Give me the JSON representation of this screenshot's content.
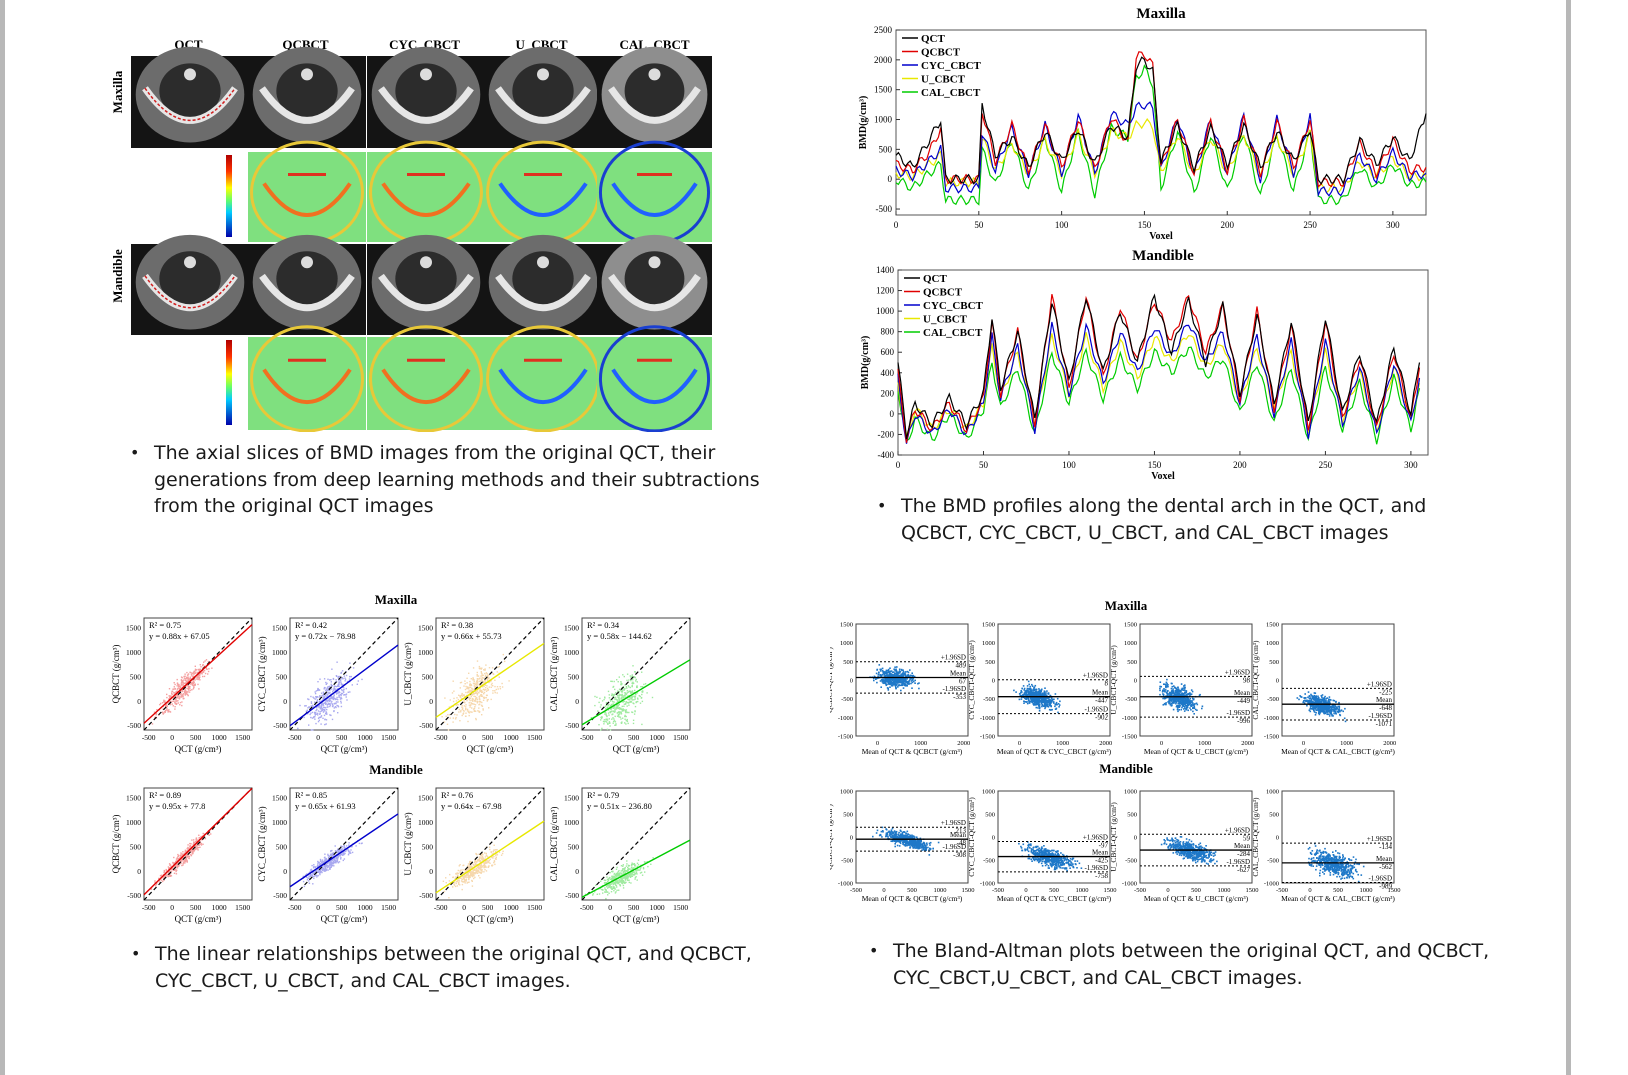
{
  "slices": {
    "column_headers": [
      "QCT",
      "QCBCT",
      "CYC_CBCT",
      "U_CBCT",
      "CAL_CBCT"
    ],
    "row_labels": [
      "Maxilla",
      "Mandible"
    ],
    "caption": [
      "The axial slices of BMD images from the original QCT, their",
      "generations from deep learning methods and their subtractions",
      "from the original QCT images"
    ]
  },
  "profiles": {
    "caption": [
      "The BMD profiles along the dental arch in the QCT, and",
      "QCBCT, CYC_CBCT, U_CBCT, and CAL_CBCT images"
    ]
  },
  "linear": {
    "caption": [
      "The linear relationships between the original QCT, and QCBCT,",
      "CYC_CBCT, U_CBCT, and CAL_CBCT images."
    ]
  },
  "bland_altman": {
    "caption": [
      "The Bland-Altman plots between the original QCT, and QCBCT,",
      "CYC_CBCT,U_CBCT, and CAL_CBCT images."
    ]
  },
  "colors": {
    "QCT": "#000000",
    "QCBCT": "#e00000",
    "CYC_CBCT": "#0000cc",
    "U_CBCT": "#e8e800",
    "CAL_CBCT": "#00cc00",
    "scatter_qcbct": "#f4a0a0",
    "scatter_cyc": "#a9a9ef",
    "scatter_u": "#f6d7ac",
    "scatter_cal": "#9fea9f",
    "ba_points": "#1e78c8"
  },
  "chart_data": [
    {
      "type": "line",
      "title": "Maxilla",
      "xlabel": "Voxel",
      "ylabel": "BMD(g/cm³)",
      "xlim": [
        0,
        320
      ],
      "ylim": [
        -600,
        2500
      ],
      "x_ticks": [
        0,
        50,
        100,
        150,
        200,
        250,
        300
      ],
      "y_ticks": [
        -500,
        0,
        500,
        1000,
        1500,
        2000,
        2500
      ],
      "legend_position": "top-left",
      "x": [
        0,
        10,
        20,
        27,
        30,
        50,
        52,
        60,
        70,
        80,
        90,
        100,
        110,
        120,
        130,
        140,
        145,
        150,
        155,
        160,
        170,
        180,
        190,
        200,
        210,
        220,
        230,
        240,
        250,
        255,
        260,
        270,
        280,
        290,
        300,
        310,
        320
      ],
      "series": [
        {
          "name": "QCT",
          "values": [
            400,
            200,
            650,
            1000,
            0,
            0,
            1250,
            400,
            700,
            200,
            800,
            300,
            850,
            250,
            900,
            700,
            1900,
            2000,
            1800,
            300,
            900,
            200,
            850,
            250,
            900,
            200,
            800,
            300,
            850,
            0,
            0,
            0,
            650,
            250,
            700,
            300,
            1100
          ]
        },
        {
          "name": "QCBCT",
          "values": [
            250,
            150,
            450,
            850,
            0,
            0,
            1150,
            300,
            900,
            150,
            900,
            200,
            1000,
            150,
            1050,
            600,
            2050,
            2100,
            1900,
            200,
            1000,
            100,
            950,
            150,
            1000,
            100,
            950,
            200,
            1000,
            -50,
            -50,
            -50,
            600,
            100,
            650,
            150,
            200
          ]
        },
        {
          "name": "CYC_CBCT",
          "values": [
            150,
            50,
            300,
            500,
            -150,
            -150,
            800,
            150,
            850,
            100,
            900,
            100,
            1050,
            100,
            1100,
            900,
            1200,
            1250,
            1200,
            150,
            1050,
            50,
            1000,
            100,
            1050,
            0,
            1000,
            100,
            1050,
            -200,
            -200,
            -200,
            400,
            0,
            450,
            50,
            100
          ]
        },
        {
          "name": "U_CBCT",
          "values": [
            100,
            50,
            250,
            400,
            -50,
            -50,
            700,
            150,
            600,
            100,
            650,
            100,
            750,
            100,
            800,
            700,
            900,
            950,
            900,
            100,
            750,
            50,
            700,
            100,
            750,
            50,
            700,
            100,
            750,
            -150,
            -150,
            -150,
            300,
            50,
            350,
            50,
            50
          ]
        },
        {
          "name": "CAL_CBCT",
          "values": [
            0,
            -150,
            100,
            250,
            -350,
            -350,
            500,
            -100,
            650,
            -200,
            700,
            -200,
            800,
            -250,
            850,
            700,
            1700,
            1850,
            1600,
            -150,
            800,
            -250,
            750,
            -200,
            800,
            -300,
            750,
            -200,
            800,
            -350,
            -350,
            -350,
            200,
            -150,
            250,
            -100,
            -50
          ]
        }
      ]
    },
    {
      "type": "line",
      "title": "Mandible",
      "xlabel": "Voxel",
      "ylabel": "BMD(g/cm³)",
      "xlim": [
        0,
        310
      ],
      "ylim": [
        -400,
        1400
      ],
      "x_ticks": [
        0,
        50,
        100,
        150,
        200,
        250,
        300
      ],
      "y_ticks": [
        -400,
        -200,
        0,
        200,
        400,
        600,
        800,
        1000,
        1200,
        1400
      ],
      "legend_position": "top-left",
      "x": [
        0,
        5,
        10,
        20,
        30,
        40,
        50,
        55,
        60,
        70,
        80,
        90,
        100,
        110,
        120,
        130,
        140,
        150,
        160,
        170,
        180,
        190,
        200,
        210,
        220,
        230,
        240,
        250,
        260,
        270,
        280,
        290,
        300,
        305
      ],
      "series": [
        {
          "name": "QCT",
          "values": [
            500,
            -200,
            100,
            -100,
            150,
            -100,
            200,
            950,
            250,
            800,
            -50,
            1100,
            300,
            1150,
            400,
            1000,
            500,
            1150,
            600,
            1100,
            500,
            1050,
            200,
            950,
            100,
            900,
            -100,
            950,
            0,
            600,
            -100,
            650,
            0,
            500
          ]
        },
        {
          "name": "QCBCT",
          "values": [
            400,
            -250,
            50,
            -150,
            100,
            -150,
            150,
            900,
            200,
            800,
            -100,
            1150,
            250,
            1150,
            350,
            1050,
            500,
            1100,
            700,
            1150,
            600,
            1050,
            150,
            1000,
            50,
            850,
            -150,
            900,
            -50,
            550,
            -150,
            600,
            -50,
            450
          ]
        },
        {
          "name": "CYC_CBCT",
          "values": [
            350,
            -300,
            0,
            -200,
            50,
            -200,
            100,
            750,
            150,
            650,
            -150,
            850,
            200,
            850,
            300,
            800,
            400,
            850,
            550,
            900,
            500,
            800,
            100,
            750,
            0,
            700,
            -200,
            700,
            -100,
            450,
            -200,
            500,
            -100,
            350
          ]
        },
        {
          "name": "U_CBCT",
          "values": [
            300,
            -250,
            50,
            -150,
            50,
            -150,
            100,
            650,
            150,
            600,
            -100,
            750,
            200,
            750,
            250,
            700,
            350,
            750,
            500,
            800,
            450,
            700,
            100,
            650,
            50,
            600,
            -150,
            600,
            -50,
            400,
            -150,
            450,
            -50,
            300
          ]
        },
        {
          "name": "CAL_CBCT",
          "values": [
            250,
            -300,
            -50,
            -250,
            0,
            -250,
            50,
            500,
            50,
            450,
            -200,
            600,
            100,
            600,
            150,
            550,
            250,
            600,
            400,
            650,
            350,
            550,
            0,
            500,
            -100,
            450,
            -250,
            450,
            -150,
            300,
            -250,
            350,
            -150,
            250
          ]
        }
      ]
    },
    {
      "type": "scatter",
      "title": "Maxilla",
      "xlabel": "QCT (g/cm³)",
      "xlim": [
        -600,
        1700
      ],
      "ylim": [
        -600,
        1700
      ],
      "x_ticks": [
        -500,
        0,
        500,
        1000,
        1500
      ],
      "y_ticks": [
        -500,
        0,
        500,
        1000,
        1500
      ],
      "panels": [
        {
          "ylabel": "QCBCT (g/cm³)",
          "r2": "R² = 0.75",
          "equation": "y = 0.88x + 67.05",
          "slope": 0.88,
          "intercept": 67.05
        },
        {
          "ylabel": "CYC_CBCT (g/cm³)",
          "r2": "R² = 0.42",
          "equation": "y = 0.72x − 78.98",
          "slope": 0.72,
          "intercept": -78.98
        },
        {
          "ylabel": "U_CBCT (g/cm³)",
          "r2": "R² = 0.38",
          "equation": "y = 0.66x + 55.73",
          "slope": 0.66,
          "intercept": 55.73
        },
        {
          "ylabel": "CAL_CBCT (g/cm³)",
          "r2": "R² = 0.34",
          "equation": "y = 0.58x − 144.62",
          "slope": 0.58,
          "intercept": -144.62
        }
      ]
    },
    {
      "type": "scatter",
      "title": "Mandible",
      "xlabel": "QCT (g/cm³)",
      "xlim": [
        -600,
        1700
      ],
      "ylim": [
        -600,
        1700
      ],
      "x_ticks": [
        -500,
        0,
        500,
        1000,
        1500
      ],
      "y_ticks": [
        -500,
        0,
        500,
        1000,
        1500
      ],
      "panels": [
        {
          "ylabel": "QCBCT (g/cm³)",
          "r2": "R² = 0.89",
          "equation": "y = 0.95x + 77.8",
          "slope": 0.95,
          "intercept": 77.8
        },
        {
          "ylabel": "CYC_CBCT (g/cm³)",
          "r2": "R² = 0.85",
          "equation": "y = 0.65x + 61.93",
          "slope": 0.65,
          "intercept": 61.93
        },
        {
          "ylabel": "U_CBCT (g/cm³)",
          "r2": "R² = 0.76",
          "equation": "y = 0.64x − 67.98",
          "slope": 0.64,
          "intercept": -67.98
        },
        {
          "ylabel": "CAL_CBCT (g/cm³)",
          "r2": "R² = 0.79",
          "equation": "y = 0.51x − 236.80",
          "slope": 0.51,
          "intercept": -236.8
        }
      ]
    },
    {
      "type": "scatter",
      "title": "Maxilla",
      "xlim": [
        -500,
        2100
      ],
      "ylim": [
        -1500,
        1500
      ],
      "x_ticks": [
        0,
        1000,
        2000
      ],
      "y_ticks": [
        -1500,
        -1000,
        -500,
        0,
        500,
        1000,
        1500
      ],
      "panels": [
        {
          "xlabel": "Mean of QCT & QCBCT (g/cm³)",
          "ylabel": "QCBCT-QCT (g/cm³)",
          "upper": 489,
          "mean": 67,
          "lower": -353,
          "upper_label": "+1.96SD",
          "upper_value": "489",
          "mean_label": "Mean",
          "mean_value": "67",
          "lower_label": "-1.96SD",
          "lower_value": "-353"
        },
        {
          "xlabel": "Mean of QCT & CYC_CBCT (g/cm³)",
          "ylabel": "CYC_CBCT-QCT (g/cm³)",
          "upper": 8,
          "mean": -447,
          "lower": -902,
          "upper_label": "+1.96SD",
          "upper_value": "8",
          "mean_label": "Mean",
          "mean_value": "-447",
          "lower_label": "-1.96SD",
          "lower_value": "-902"
        },
        {
          "xlabel": "Mean of QCT & U_CBCT (g/cm³)",
          "ylabel": "U_CBCT-QCT (g/cm³)",
          "upper": 98,
          "mean": -449,
          "lower": -996,
          "upper_label": "+1.96SD",
          "upper_value": "98",
          "mean_label": "Mean",
          "mean_value": "-449",
          "lower_label": "-1.96SD",
          "lower_value": "-996"
        },
        {
          "xlabel": "Mean of QCT & CAL_CBCT (g/cm³)",
          "ylabel": "CAL_CBCT-QCT (g/cm³)",
          "upper": -225,
          "mean": -648,
          "lower": -1071,
          "upper_label": "+1.96SD",
          "upper_value": "-225",
          "mean_label": "Mean",
          "mean_value": "-648",
          "lower_label": "-1.96SD",
          "lower_value": "-1071"
        }
      ]
    },
    {
      "type": "scatter",
      "title": "Mandible",
      "xlim": [
        -500,
        1500
      ],
      "ylim": [
        -1000,
        1000
      ],
      "x_ticks": [
        -500,
        0,
        500,
        1000,
        1500
      ],
      "y_ticks": [
        -1000,
        -500,
        0,
        500,
        1000
      ],
      "panels": [
        {
          "xlabel": "Mean of QCT & QCBCT (g/cm³)",
          "ylabel": "QCBCT-QCT (g/cm³)",
          "upper": 213,
          "mean": -48,
          "lower": -308,
          "upper_label": "+1.96SD",
          "upper_value": "213",
          "mean_label": "Mean",
          "mean_value": "-48",
          "lower_label": "-1.96SD",
          "lower_value": "-308"
        },
        {
          "xlabel": "Mean of QCT & CYC_CBCT (g/cm³)",
          "ylabel": "CYC_CBCT-QCT (g/cm³)",
          "upper": -97,
          "mean": -425,
          "lower": -758,
          "upper_label": "+1.96SD",
          "upper_value": "-97",
          "mean_label": "Mean",
          "mean_value": "-425",
          "lower_label": "-1.96SD",
          "lower_value": "-758"
        },
        {
          "xlabel": "Mean of QCT & U_CBCT (g/cm³)",
          "ylabel": "U_CBCT-QCT (g/cm³)",
          "upper": 59,
          "mean": -284,
          "lower": -627,
          "upper_label": "+1.96SD",
          "upper_value": "59",
          "mean_label": "Mean",
          "mean_value": "-284",
          "lower_label": "-1.96SD",
          "lower_value": "-627"
        },
        {
          "xlabel": "Mean of QCT & CAL_CBCT (g/cm³)",
          "ylabel": "CAL_CBCT-QCT (g/cm³)",
          "upper": -134,
          "mean": -562,
          "lower": -989,
          "upper_label": "+1.96SD",
          "upper_value": "-134",
          "mean_label": "Mean",
          "mean_value": "-562",
          "lower_label": "-1.96SD",
          "lower_value": "-989"
        }
      ]
    }
  ]
}
